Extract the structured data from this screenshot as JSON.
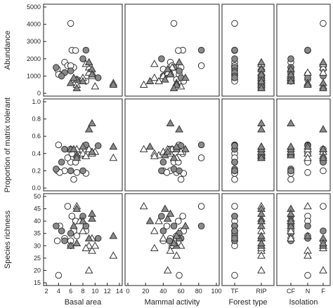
{
  "chart_data": {
    "type": "scatter",
    "rows": [
      {
        "ylabel": "Abundance",
        "yticks": [
          "0",
          "1000",
          "2000",
          "3000",
          "4000",
          "5000"
        ],
        "ylim": [
          0,
          5000
        ]
      },
      {
        "ylabel": "Proportion of matrix tolerant",
        "yticks": [
          "0.0",
          "0.2",
          "0.4",
          "0.6",
          "0.8",
          "1.0"
        ],
        "ylim": [
          0,
          1
        ]
      },
      {
        "ylabel": "Species richness",
        "yticks": [
          "15",
          "20",
          "25",
          "30",
          "35",
          "40",
          "45",
          "50"
        ],
        "ylim": [
          15,
          50
        ]
      }
    ],
    "columns": [
      {
        "xlabel": "Basal area",
        "type": "numeric",
        "xlim": [
          2,
          14
        ],
        "xticks": [
          "2",
          "4",
          "6",
          "8",
          "10",
          "12",
          "14"
        ]
      },
      {
        "xlabel": "Mammal activity",
        "type": "numeric",
        "xlim": [
          0,
          100
        ],
        "xticks": [
          "0",
          "20",
          "40",
          "60",
          "80",
          "100"
        ]
      },
      {
        "xlabel": "Forest type",
        "type": "categorical",
        "categories": [
          "TF",
          "RIP"
        ]
      },
      {
        "xlabel": "Isolation",
        "type": "categorical",
        "categories": [
          "CF",
          "N",
          "F"
        ]
      }
    ],
    "points": [
      {
        "ba": 6.0,
        "ma": 52,
        "ft": "TF",
        "iso": "F",
        "ab": 4050,
        "pmt": 0.3,
        "sr": 32,
        "shape": "circle",
        "fill": "open"
      },
      {
        "ba": 6.2,
        "ma": 62,
        "ft": "TF",
        "iso": "N",
        "ab": 2500,
        "pmt": 0.4,
        "sr": 42,
        "shape": "circle",
        "fill": "open"
      },
      {
        "ba": 6.8,
        "ma": 57,
        "ft": "TF",
        "iso": "N",
        "ab": 2480,
        "pmt": 0.3,
        "sr": 40,
        "shape": "circle",
        "fill": "open"
      },
      {
        "ba": 5.0,
        "ma": 48,
        "ft": "TF",
        "iso": "CF",
        "ab": 1800,
        "pmt": 0.2,
        "sr": 33,
        "shape": "circle",
        "fill": "open"
      },
      {
        "ba": 6.5,
        "ma": 60,
        "ft": "TF",
        "iso": "CF",
        "ab": 1500,
        "pmt": 0.1,
        "sr": 36,
        "shape": "circle",
        "fill": "open"
      },
      {
        "ba": 3.8,
        "ma": 40,
        "ft": "TF",
        "iso": "F",
        "ab": 1400,
        "pmt": 0.2,
        "sr": 32,
        "shape": "circle",
        "fill": "open"
      },
      {
        "ba": 4.2,
        "ma": 44,
        "ft": "TF",
        "iso": "CF",
        "ab": 1100,
        "pmt": 0.18,
        "sr": 38,
        "shape": "circle",
        "fill": "open"
      },
      {
        "ba": 7.0,
        "ma": 55,
        "ft": "TF",
        "iso": "N",
        "ab": 800,
        "pmt": 0.18,
        "sr": 34,
        "shape": "circle",
        "fill": "open"
      },
      {
        "ba": 8.5,
        "ma": 63,
        "ft": "TF",
        "iso": "CF",
        "ab": 700,
        "pmt": 0.17,
        "sr": 36,
        "shape": "circle",
        "fill": "open"
      },
      {
        "ba": 5.5,
        "ma": 83,
        "ft": "TF",
        "iso": "F",
        "ab": 1600,
        "pmt": 0.35,
        "sr": 46,
        "shape": "circle",
        "fill": "open"
      },
      {
        "ba": 4.0,
        "ma": 58,
        "ft": "TF",
        "iso": "N",
        "ab": 1100,
        "pmt": 0.5,
        "sr": 18,
        "shape": "circle",
        "fill": "open"
      },
      {
        "ba": 6.0,
        "ma": 50,
        "ft": "TF",
        "iso": "F",
        "ab": 1600,
        "pmt": 0.45,
        "sr": 30,
        "shape": "circle",
        "fill": "open"
      },
      {
        "ba": 3.6,
        "ma": 52,
        "ft": "TF",
        "iso": "CF",
        "ab": 1500,
        "pmt": 0.22,
        "sr": 38,
        "shape": "circle",
        "fill": "filled"
      },
      {
        "ba": 6.0,
        "ma": 58,
        "ft": "TF",
        "iso": "CF",
        "ab": 1300,
        "pmt": 0.2,
        "sr": 35,
        "shape": "circle",
        "fill": "filled"
      },
      {
        "ba": 8.5,
        "ma": 83,
        "ft": "TF",
        "iso": "N",
        "ab": 2500,
        "pmt": 0.5,
        "sr": 38,
        "shape": "circle",
        "fill": "filled"
      },
      {
        "ba": 5.0,
        "ma": 47,
        "ft": "TF",
        "iso": "CF",
        "ab": 1200,
        "pmt": 0.45,
        "sr": 32,
        "shape": "circle",
        "fill": "filled"
      },
      {
        "ba": 4.5,
        "ma": 40,
        "ft": "TF",
        "iso": "F",
        "ab": 1000,
        "pmt": 0.3,
        "sr": 36,
        "shape": "circle",
        "fill": "filled"
      },
      {
        "ba": 10.5,
        "ma": 60,
        "ft": "TF",
        "iso": "N",
        "ab": 900,
        "pmt": 0.49,
        "sr": 33,
        "shape": "circle",
        "fill": "filled"
      },
      {
        "ba": 8.0,
        "ma": 38,
        "ft": "TF",
        "iso": "CF",
        "ab": 2000,
        "pmt": 0.2,
        "sr": 42,
        "shape": "circle",
        "fill": "filled"
      },
      {
        "ba": 9.0,
        "ma": 50,
        "ft": "RIP",
        "iso": "F",
        "ab": 1500,
        "pmt": 0.45,
        "sr": 30,
        "shape": "triangle",
        "fill": "open"
      },
      {
        "ba": 9.5,
        "ma": 48,
        "ft": "RIP",
        "iso": "N",
        "ab": 1200,
        "pmt": 0.4,
        "sr": 28,
        "shape": "triangle",
        "fill": "open"
      },
      {
        "ba": 7.5,
        "ma": 35,
        "ft": "RIP",
        "iso": "CF",
        "ab": 700,
        "pmt": 0.38,
        "sr": 40,
        "shape": "triangle",
        "fill": "open"
      },
      {
        "ba": 10.0,
        "ma": 60,
        "ft": "RIP",
        "iso": "F",
        "ab": 400,
        "pmt": 0.42,
        "sr": 30,
        "shape": "triangle",
        "fill": "open"
      },
      {
        "ba": 13.0,
        "ma": 55,
        "ft": "RIP",
        "iso": "N",
        "ab": 600,
        "pmt": 0.35,
        "sr": 26,
        "shape": "triangle",
        "fill": "open"
      },
      {
        "ba": 8.0,
        "ma": 30,
        "ft": "RIP",
        "iso": "CF",
        "ab": 900,
        "pmt": 0.4,
        "sr": 36,
        "shape": "triangle",
        "fill": "open"
      },
      {
        "ba": 9.0,
        "ma": 45,
        "ft": "RIP",
        "iso": "F",
        "ab": 1200,
        "pmt": 0.45,
        "sr": 20,
        "shape": "triangle",
        "fill": "open"
      },
      {
        "ba": 7.0,
        "ma": 18,
        "ft": "RIP",
        "iso": "N",
        "ab": 500,
        "pmt": 0.45,
        "sr": 46,
        "shape": "triangle",
        "fill": "open"
      },
      {
        "ba": 9.5,
        "ma": 40,
        "ft": "RIP",
        "iso": "CF",
        "ab": 1000,
        "pmt": 0.42,
        "sr": 33,
        "shape": "triangle",
        "fill": "open"
      },
      {
        "ba": 8.5,
        "ma": 30,
        "ft": "RIP",
        "iso": "F",
        "ab": 1700,
        "pmt": 0.37,
        "sr": 29,
        "shape": "triangle",
        "fill": "open"
      },
      {
        "ba": 9.0,
        "ma": 58,
        "ft": "RIP",
        "iso": "F",
        "ab": 1800,
        "pmt": 0.68,
        "sr": 33,
        "shape": "triangle",
        "fill": "filled"
      },
      {
        "ba": 6.0,
        "ma": 55,
        "ft": "RIP",
        "iso": "F",
        "ab": 600,
        "pmt": 0.45,
        "sr": 30,
        "shape": "triangle",
        "fill": "filled"
      },
      {
        "ba": 7.0,
        "ma": 42,
        "ft": "RIP",
        "iso": "CF",
        "ab": 800,
        "pmt": 0.38,
        "sr": 45,
        "shape": "triangle",
        "fill": "filled"
      },
      {
        "ba": 9.5,
        "ma": 45,
        "ft": "RIP",
        "iso": "CF",
        "ab": 1400,
        "pmt": 0.42,
        "sr": 41,
        "shape": "triangle",
        "fill": "filled"
      },
      {
        "ba": 13.0,
        "ma": 55,
        "ft": "RIP",
        "iso": "N",
        "ab": 500,
        "pmt": 0.48,
        "sr": 34,
        "shape": "triangle",
        "fill": "filled"
      },
      {
        "ba": 6.5,
        "ma": 65,
        "ft": "RIP",
        "iso": "CF",
        "ab": 900,
        "pmt": 0.45,
        "sr": 38,
        "shape": "triangle",
        "fill": "filled"
      },
      {
        "ba": 7.0,
        "ma": 52,
        "ft": "RIP",
        "iso": "F",
        "ab": 300,
        "pmt": 0.35,
        "sr": 31,
        "shape": "triangle",
        "fill": "filled"
      },
      {
        "ba": 9.5,
        "ma": 48,
        "ft": "RIP",
        "iso": "CF",
        "ab": 1100,
        "pmt": 0.75,
        "sr": 43,
        "shape": "triangle",
        "fill": "filled"
      },
      {
        "ba": 8.0,
        "ma": 25,
        "ft": "RIP",
        "iso": "CF",
        "ab": 700,
        "pmt": 0.48,
        "sr": 40,
        "shape": "triangle",
        "fill": "filled"
      }
    ],
    "legend": "none",
    "grid": false
  }
}
